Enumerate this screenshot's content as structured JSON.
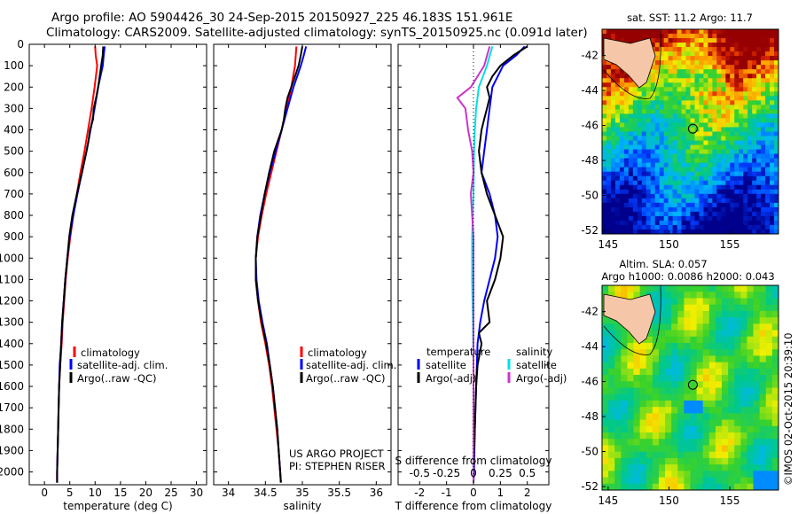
{
  "header": {
    "title_line1": "Argo profile: AO 5904426_30 24-Sep-2015 20150927_225 46.183S 151.961E",
    "title_line2": "Climatology: CARS2009. Satellite-adjusted climatology: synTS_20150925.nc (0.091d later)"
  },
  "colors": {
    "climatology": "#ff0000",
    "satellite": "#0000ff",
    "argo": "#000000",
    "sat_salinity": "#00e0e0",
    "argo_salinity": "#cc33cc"
  },
  "depth_ticks": [
    "0",
    "100",
    "200",
    "300",
    "400",
    "500",
    "600",
    "700",
    "800",
    "900",
    "1000",
    "1100",
    "1200",
    "1300",
    "1400",
    "1500",
    "1600",
    "1700",
    "1800",
    "1900",
    "2000"
  ],
  "chart_data": [
    {
      "type": "line",
      "id": "temperature",
      "xlabel": "temperature (deg C)",
      "xticks": [
        "0",
        "5",
        "10",
        "15",
        "20",
        "25",
        "30"
      ],
      "xlim": [
        -3,
        32
      ],
      "ylim": [
        2060,
        0
      ],
      "legend": [
        "climatology",
        "satellite-adj. clim.",
        "Argo(..raw -QC)"
      ],
      "series": [
        {
          "name": "climatology",
          "color": "#ff0000",
          "depth": [
            10,
            50,
            100,
            200,
            300,
            400,
            500,
            600,
            700,
            800,
            900,
            1000,
            1100,
            1200,
            1300,
            1400,
            1500,
            1600,
            1700,
            1800,
            1900,
            2000,
            2050
          ],
          "values": [
            10.0,
            10.1,
            10.4,
            9.9,
            9.3,
            8.6,
            7.9,
            7.1,
            6.4,
            5.7,
            5.1,
            4.6,
            4.2,
            3.9,
            3.6,
            3.4,
            3.1,
            2.9,
            2.8,
            2.7,
            2.6,
            2.5,
            2.5
          ]
        },
        {
          "name": "satellite-adj. clim.",
          "color": "#0000ff",
          "depth": [
            10,
            50,
            100,
            200,
            300,
            400,
            500,
            600,
            700,
            800,
            900,
            1000,
            1100,
            1200,
            1300,
            1400,
            1500,
            1600,
            1700,
            1800,
            1900,
            2000,
            2050
          ],
          "values": [
            11.9,
            11.7,
            11.5,
            10.6,
            9.9,
            9.1,
            8.3,
            7.4,
            6.5,
            5.7,
            5.0,
            4.5,
            4.1,
            3.8,
            3.5,
            3.3,
            3.0,
            2.9,
            2.8,
            2.7,
            2.6,
            2.5,
            2.5
          ]
        },
        {
          "name": "Argo(..raw -QC)",
          "color": "#000000",
          "depth": [
            10,
            50,
            100,
            150,
            200,
            250,
            300,
            350,
            400,
            450,
            500,
            600,
            700,
            800,
            900,
            1000,
            1100,
            1200,
            1300,
            1400,
            1500,
            1600,
            1700,
            1800,
            1900,
            2000,
            2050
          ],
          "values": [
            11.6,
            11.5,
            11.2,
            10.9,
            10.6,
            10.2,
            9.7,
            9.6,
            9.0,
            8.7,
            8.3,
            7.4,
            6.4,
            5.5,
            4.9,
            4.5,
            4.1,
            3.8,
            3.5,
            3.3,
            3.1,
            2.9,
            2.8,
            2.7,
            2.6,
            2.5,
            2.5
          ]
        }
      ]
    },
    {
      "type": "line",
      "id": "salinity",
      "xlabel": "salinity",
      "xticks": [
        "34",
        "34.5",
        "35",
        "35.5",
        "36"
      ],
      "xlim": [
        33.8,
        36.2
      ],
      "ylim": [
        2060,
        0
      ],
      "legend": [
        "climatology",
        "satellite-adj. clim.",
        "Argo(..raw -QC)"
      ],
      "series": [
        {
          "name": "climatology",
          "color": "#ff0000",
          "depth": [
            10,
            100,
            200,
            300,
            400,
            500,
            600,
            700,
            800,
            900,
            1000,
            1100,
            1200,
            1300,
            1400,
            1500,
            1600,
            1700,
            1800,
            1900,
            2000,
            2050
          ],
          "values": [
            34.92,
            34.9,
            34.85,
            34.79,
            34.72,
            34.65,
            34.58,
            34.51,
            34.45,
            34.4,
            34.37,
            34.37,
            34.4,
            34.44,
            34.5,
            34.55,
            34.59,
            34.62,
            34.65,
            34.68,
            34.7,
            34.71
          ]
        },
        {
          "name": "satellite-adj. clim.",
          "color": "#0000ff",
          "depth": [
            10,
            50,
            100,
            200,
            300,
            400,
            500,
            600,
            700,
            800,
            900,
            1000,
            1100,
            1200,
            1300,
            1400,
            1500,
            1600,
            1700,
            1800,
            1900,
            2000,
            2050
          ],
          "values": [
            35.05,
            35.02,
            34.98,
            34.88,
            34.8,
            34.72,
            34.64,
            34.56,
            34.49,
            34.43,
            34.39,
            34.37,
            34.38,
            34.41,
            34.46,
            34.52,
            34.56,
            34.6,
            34.63,
            34.66,
            34.68,
            34.7,
            34.71
          ]
        },
        {
          "name": "Argo(..raw -QC)",
          "color": "#000000",
          "depth": [
            10,
            50,
            100,
            150,
            200,
            250,
            300,
            350,
            400,
            500,
            600,
            700,
            800,
            900,
            1000,
            1100,
            1200,
            1300,
            1400,
            1500,
            1600,
            1700,
            1800,
            1900,
            2000,
            2050
          ],
          "values": [
            35.0,
            34.98,
            34.95,
            34.9,
            34.85,
            34.8,
            34.77,
            34.75,
            34.72,
            34.62,
            34.55,
            34.49,
            34.44,
            34.39,
            34.37,
            34.37,
            34.4,
            34.45,
            34.51,
            34.56,
            34.6,
            34.63,
            34.66,
            34.68,
            34.7,
            34.71
          ]
        }
      ]
    },
    {
      "type": "line",
      "id": "difference",
      "xlabel": "T difference from climatology",
      "xlabel_top": "S difference from climatology",
      "xticks": [
        "-2",
        "-1",
        "0",
        "1",
        "2"
      ],
      "xticks_top": [
        "-0.5",
        "-0.25",
        "0",
        "0.25",
        "0.5"
      ],
      "xlim": [
        -2.8,
        2.8
      ],
      "ylim": [
        2060,
        0
      ],
      "legend_left_title": "temperature",
      "legend_right_title": "salinity",
      "legend_left": [
        "satellite",
        "Argo(-adj)"
      ],
      "legend_right": [
        "satellite",
        "Argo(-adj)"
      ],
      "series": [
        {
          "name": "satellite",
          "group": "temperature",
          "color": "#0000ff",
          "depth": [
            10,
            50,
            100,
            200,
            300,
            400,
            500,
            600,
            700,
            800,
            900,
            1000,
            1100,
            1200,
            1300,
            1400,
            1600,
            1800,
            2000,
            2050
          ],
          "values": [
            1.9,
            1.6,
            1.1,
            0.7,
            0.6,
            0.5,
            0.4,
            0.3,
            0.6,
            0.8,
            0.9,
            0.8,
            0.6,
            0.4,
            0.25,
            0.15,
            0.1,
            0.05,
            0.02,
            0.0
          ]
        },
        {
          "name": "Argo(-adj)",
          "group": "temperature",
          "color": "#000000",
          "depth": [
            10,
            50,
            100,
            150,
            200,
            250,
            300,
            350,
            400,
            450,
            500,
            600,
            700,
            800,
            900,
            1000,
            1100,
            1200,
            1300,
            1350,
            1400,
            1500,
            1600,
            1800,
            2000,
            2050
          ],
          "values": [
            2.0,
            1.5,
            1.0,
            0.7,
            0.5,
            0.6,
            0.5,
            0.4,
            0.3,
            0.25,
            0.2,
            0.3,
            0.5,
            0.8,
            1.1,
            1.0,
            0.8,
            0.5,
            0.6,
            0.2,
            0.3,
            0.15,
            0.1,
            0.05,
            0.0,
            0.0
          ]
        },
        {
          "name": "satellite",
          "group": "salinity",
          "color": "#00e0e0",
          "depth": [
            10,
            100,
            200,
            300,
            400,
            500,
            700,
            900,
            1100,
            1300,
            1500,
            1700,
            1900,
            2050
          ],
          "values": [
            0.7,
            0.5,
            0.2,
            0.1,
            0.05,
            0.02,
            0.0,
            -0.05,
            -0.05,
            -0.02,
            0.0,
            0.0,
            0.0,
            0.0
          ]
        },
        {
          "name": "Argo(-adj)",
          "group": "salinity",
          "color": "#cc33cc",
          "depth": [
            10,
            100,
            200,
            250,
            300,
            400,
            500,
            600,
            700,
            800,
            900,
            1000,
            1100,
            1200,
            1300,
            1400,
            1500,
            1600,
            1700,
            1800,
            1900,
            2050
          ],
          "values": [
            0.6,
            0.4,
            -0.1,
            -0.6,
            -0.3,
            -0.2,
            -0.05,
            0.0,
            -0.1,
            -0.05,
            0.0,
            0.0,
            0.0,
            0.0,
            0.0,
            0.0,
            0.0,
            0.0,
            0.0,
            0.0,
            0.0,
            0.0
          ]
        }
      ]
    }
  ],
  "maps": [
    {
      "id": "sst-map",
      "title": "sat. SST: 11.2 Argo: 11.7",
      "title2": "",
      "xticks": [
        "145",
        "150",
        "155"
      ],
      "yticks": [
        "-42",
        "-44",
        "-46",
        "-48",
        "-50",
        "-52"
      ],
      "float_lon": 151.961,
      "float_lat": -46.183
    },
    {
      "id": "sla-map",
      "title": "Altim. SLA: 0.057",
      "title2": "Argo h1000: 0.0086 h2000: 0.043",
      "xticks": [
        "145",
        "150",
        "155"
      ],
      "yticks": [
        "-42",
        "-44",
        "-46",
        "-48",
        "-50",
        "-52"
      ],
      "float_lon": 151.961,
      "float_lat": -46.183
    }
  ],
  "credits": {
    "project": "US ARGO PROJECT",
    "pi": "PI: STEPHEN RISER",
    "imos": "©IMOS 02-Oct-2015 20:39:10"
  }
}
